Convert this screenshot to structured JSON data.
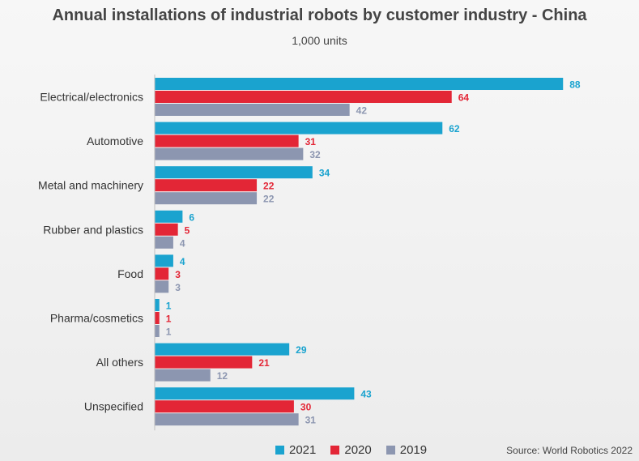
{
  "chart_data": {
    "type": "bar",
    "orientation": "horizontal",
    "title": "Annual installations of industrial robots by customer industry - China",
    "subtitle": "1,000 units",
    "categories": [
      "Electrical/electronics",
      "Automotive",
      "Metal and machinery",
      "Rubber and plastics",
      "Food",
      "Pharma/cosmetics",
      "All others",
      "Unspecified"
    ],
    "series": [
      {
        "name": "2021",
        "color": "#1aa3cf",
        "values": [
          88,
          62,
          34,
          6,
          4,
          1,
          29,
          43
        ]
      },
      {
        "name": "2020",
        "color": "#e32636",
        "values": [
          64,
          31,
          22,
          5,
          3,
          1,
          21,
          30
        ]
      },
      {
        "name": "2019",
        "color": "#8c96b0",
        "values": [
          42,
          32,
          22,
          4,
          3,
          1,
          12,
          31
        ]
      }
    ],
    "xlim": [
      0,
      90
    ],
    "grid": false,
    "legend_position": "bottom",
    "source": "Source: World Robotics 2022"
  }
}
